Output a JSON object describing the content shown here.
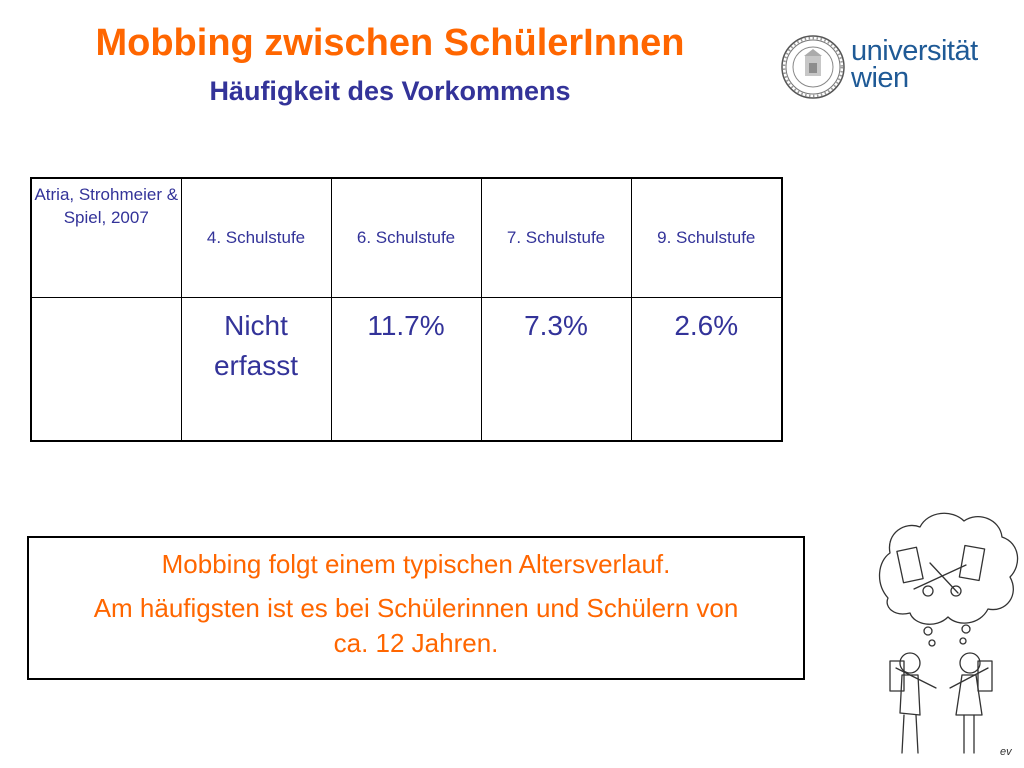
{
  "slide": {
    "title": "Mobbing zwischen SchülerInnen",
    "subtitle": "Häufigkeit des Vorkommens"
  },
  "logo": {
    "text": "universität wien",
    "icon": "university-seal-icon"
  },
  "table": {
    "headers": [
      "Atria, Strohmeier & Spiel, 2007",
      "4. Schulstufe",
      "6. Schulstufe",
      "7. Schulstufe",
      "9. Schulstufe"
    ],
    "row": [
      "",
      "Nicht erfasst",
      "11.7%",
      "7.3%",
      "2.6%"
    ]
  },
  "summary": {
    "line1": "Mobbing folgt einem typischen Altersverlauf.",
    "line2": "Am häufigsten ist es bei Schülerinnen und Schülern von ca. 12 Jahren."
  },
  "colors": {
    "title": "#ff6600",
    "subtitle": "#333399",
    "table_text": "#333399",
    "summary_text": "#ff6600",
    "logo": "#1f5a96"
  },
  "cartoon": {
    "icon": "children-cartoon-icon",
    "signature": "ev"
  }
}
